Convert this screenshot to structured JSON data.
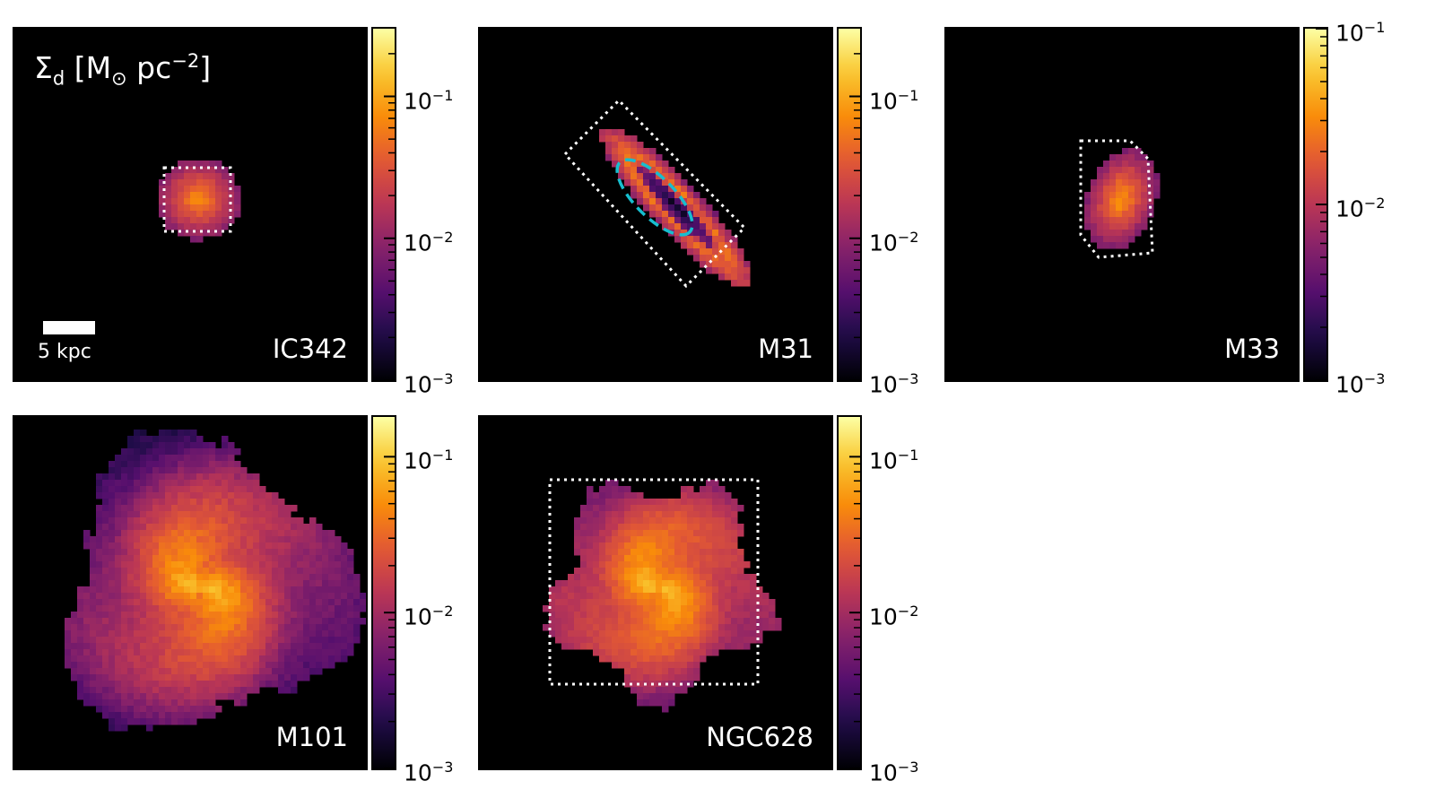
{
  "figure": {
    "quantity_label": "Σd [M⊙ pc⁻²]",
    "quantity_base": "Σ",
    "quantity_sub": "d",
    "quantity_unit": " [M",
    "quantity_sun": "⊙",
    "quantity_pc": " pc",
    "quantity_exp": "−2",
    "quantity_close": "]",
    "scale_bar_label": "5 kpc",
    "colormap": "inferno",
    "colors": {
      "background": "#000000",
      "region_outline": "#ffffff",
      "inner_region_outline": "#17becf"
    }
  },
  "chart_data": [
    {
      "type": "heatmap",
      "galaxy": "IC342",
      "scale": "log",
      "clim": [
        0.001,
        0.3
      ],
      "colorbar_ticks": [
        {
          "value": 0.1,
          "label": "10",
          "exp": "−1"
        },
        {
          "value": 0.01,
          "label": "10",
          "exp": "−2"
        },
        {
          "value": 0.001,
          "label": "10",
          "exp": "−3"
        }
      ],
      "peak_value": 0.08,
      "dashed_region": "square"
    },
    {
      "type": "heatmap",
      "galaxy": "M31",
      "scale": "log",
      "clim": [
        0.001,
        0.3
      ],
      "colorbar_ticks": [
        {
          "value": 0.1,
          "label": "10",
          "exp": "−1"
        },
        {
          "value": 0.01,
          "label": "10",
          "exp": "−2"
        },
        {
          "value": 0.001,
          "label": "10",
          "exp": "−3"
        }
      ],
      "peak_value": 0.06,
      "dashed_region": "rotated rectangle",
      "inner_region": "ellipse"
    },
    {
      "type": "heatmap",
      "galaxy": "M33",
      "scale": "log",
      "clim": [
        0.001,
        0.1
      ],
      "colorbar_ticks": [
        {
          "value": 0.1,
          "label": "10",
          "exp": "−1"
        },
        {
          "value": 0.01,
          "label": "10",
          "exp": "−2"
        },
        {
          "value": 0.001,
          "label": "10",
          "exp": "−3"
        }
      ],
      "peak_value": 0.04,
      "dashed_region": "rounded rectangle"
    },
    {
      "type": "heatmap",
      "galaxy": "M101",
      "scale": "log",
      "clim": [
        0.001,
        0.18
      ],
      "colorbar_ticks": [
        {
          "value": 0.1,
          "label": "10",
          "exp": "−1"
        },
        {
          "value": 0.01,
          "label": "10",
          "exp": "−2"
        },
        {
          "value": 0.001,
          "label": "10",
          "exp": "−3"
        }
      ],
      "peak_value": 0.09
    },
    {
      "type": "heatmap",
      "galaxy": "NGC628",
      "scale": "log",
      "clim": [
        0.001,
        0.18
      ],
      "colorbar_ticks": [
        {
          "value": 0.1,
          "label": "10",
          "exp": "−1"
        },
        {
          "value": 0.01,
          "label": "10",
          "exp": "−2"
        },
        {
          "value": 0.001,
          "label": "10",
          "exp": "−3"
        }
      ],
      "peak_value": 0.09,
      "dashed_region": "rectangle"
    }
  ]
}
